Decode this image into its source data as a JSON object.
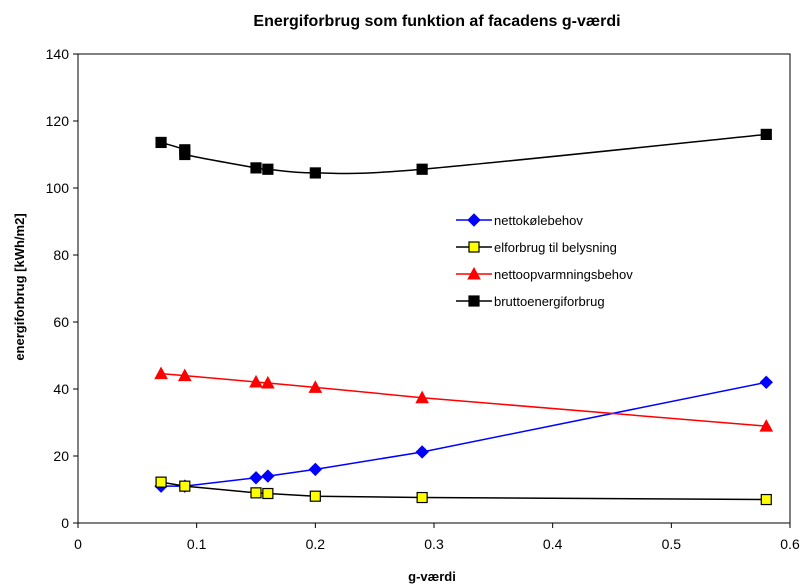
{
  "chart_data": {
    "type": "line",
    "title": "Energiforbrug som funktion af facadens g-værdi",
    "xlabel": "g-værdi",
    "ylabel": "energiforbrug [kWh/m2]",
    "xlim": [
      0,
      0.6
    ],
    "ylim": [
      0,
      140
    ],
    "x_ticks": [
      0,
      0.1,
      0.2,
      0.3,
      0.4,
      0.5,
      0.6
    ],
    "x_tick_labels": [
      "0",
      "0.1",
      "0.2",
      "0.3",
      "0.4",
      "0.5",
      "0.6"
    ],
    "y_ticks": [
      0,
      20,
      40,
      60,
      80,
      100,
      120,
      140
    ],
    "y_tick_labels": [
      "0",
      "20",
      "40",
      "60",
      "80",
      "100",
      "120",
      "140"
    ],
    "grid": false,
    "legend_position": "inside-right",
    "series": [
      {
        "name": "nettokølebehov",
        "color": "#0000ff",
        "marker": "diamond",
        "marker_fill": "#0000ff",
        "x": [
          0.07,
          0.09,
          0.15,
          0.16,
          0.2,
          0.29,
          0.58
        ],
        "y": [
          11,
          11,
          13.5,
          14,
          16,
          21.2,
          42
        ]
      },
      {
        "name": "elforbrug til belysning",
        "color": "#000000",
        "marker": "square",
        "marker_fill": "#ffff00",
        "x": [
          0.07,
          0.09,
          0.15,
          0.16,
          0.2,
          0.29,
          0.58
        ],
        "y": [
          12.2,
          11,
          9,
          8.8,
          8,
          7.6,
          7
        ]
      },
      {
        "name": "nettoopvarmningsbehov",
        "color": "#ff0000",
        "marker": "triangle",
        "marker_fill": "#ff0000",
        "x": [
          0.07,
          0.09,
          0.15,
          0.16,
          0.2,
          0.29,
          0.58
        ],
        "y": [
          44.6,
          44,
          42.1,
          41.8,
          40.5,
          37.4,
          28.9
        ]
      },
      {
        "name": "bruttoenergiforbrug",
        "color": "#000000",
        "marker": "square",
        "marker_fill": "#000000",
        "smooth": true,
        "x": [
          0.07,
          0.09,
          0.09,
          0.15,
          0.16,
          0.2,
          0.29,
          0.58
        ],
        "y": [
          113.6,
          111.4,
          110,
          106,
          105.6,
          104.5,
          105.6,
          116
        ]
      }
    ]
  }
}
